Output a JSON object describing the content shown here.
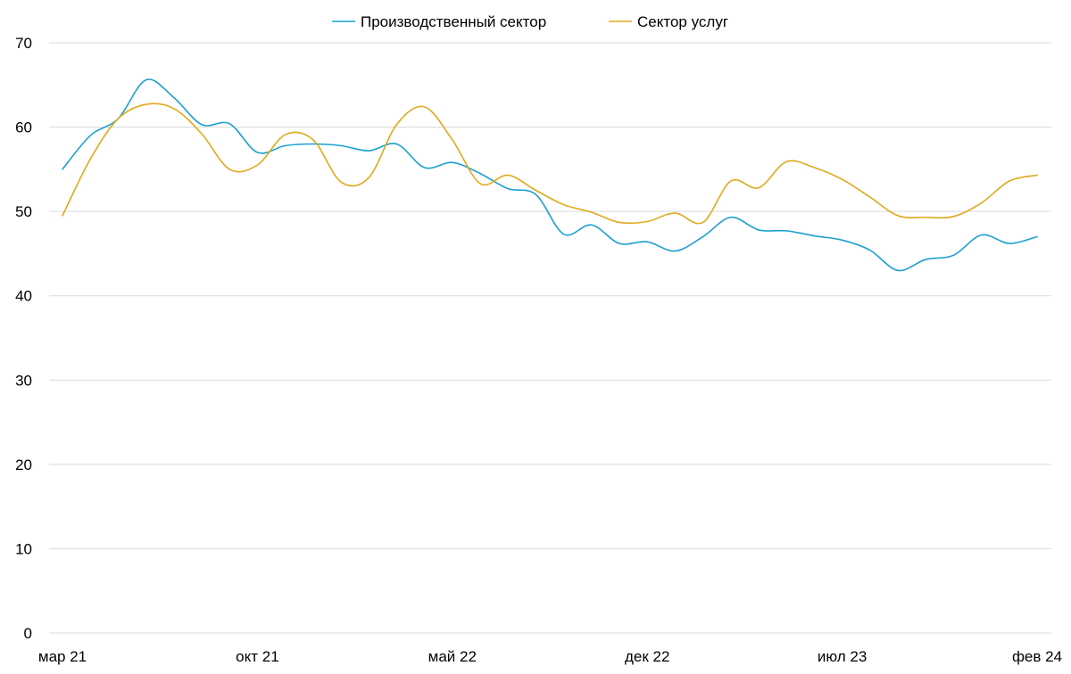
{
  "chart_data": {
    "type": "line",
    "title": "",
    "xlabel": "",
    "ylabel": "",
    "ylim": [
      0,
      70
    ],
    "yticks": [
      "0",
      "10",
      "20",
      "30",
      "40",
      "50",
      "60",
      "70"
    ],
    "grid": true,
    "legend_position": "top-center",
    "x": [
      "мар 21",
      "апр 21",
      "май 21",
      "июн 21",
      "июл 21",
      "авг 21",
      "сен 21",
      "окт 21",
      "ноя 21",
      "дек 21",
      "янв 22",
      "фев 22",
      "мар 22",
      "апр 22",
      "май 22",
      "июн 22",
      "июл 22",
      "авг 22",
      "сен 22",
      "окт 22",
      "ноя 22",
      "дек 22",
      "янв 23",
      "фев 23",
      "мар 23",
      "апр 23",
      "май 23",
      "июн 23",
      "июл 23",
      "авг 23",
      "сен 23",
      "окт 23",
      "ноя 23",
      "дек 23",
      "янв 24",
      "фев 24"
    ],
    "xtick_labels": [
      {
        "index": 0,
        "label": "мар 21"
      },
      {
        "index": 7,
        "label": "окт 21"
      },
      {
        "index": 14,
        "label": "май 22"
      },
      {
        "index": 21,
        "label": "дек 22"
      },
      {
        "index": 28,
        "label": "июл 23"
      },
      {
        "index": 35,
        "label": "фев 24"
      }
    ],
    "series": [
      {
        "name": "Производственный сектор",
        "color": "#1aa0d0",
        "values": [
          55.0,
          59.0,
          61.0,
          65.6,
          63.5,
          60.3,
          60.4,
          57.0,
          57.8,
          58.0,
          57.8,
          57.2,
          58.0,
          55.2,
          55.8,
          54.5,
          52.7,
          52.0,
          47.3,
          48.4,
          46.2,
          46.4,
          45.3,
          47.0,
          49.3,
          47.8,
          47.7,
          47.1,
          46.6,
          45.4,
          43.0,
          44.3,
          44.8,
          47.2,
          46.2,
          47.0
        ]
      },
      {
        "name": "Сектор услуг",
        "color": "#e0a91c",
        "values": [
          49.5,
          56.2,
          61.0,
          62.7,
          62.2,
          59.2,
          55.0,
          55.5,
          59.1,
          58.5,
          53.5,
          54.0,
          60.3,
          62.4,
          58.5,
          53.3,
          54.3,
          52.5,
          50.8,
          49.9,
          48.7,
          48.8,
          49.8,
          48.7,
          53.6,
          52.8,
          55.9,
          55.2,
          53.8,
          51.7,
          49.5,
          49.3,
          49.4,
          51.0,
          53.6,
          54.3
        ]
      }
    ]
  }
}
